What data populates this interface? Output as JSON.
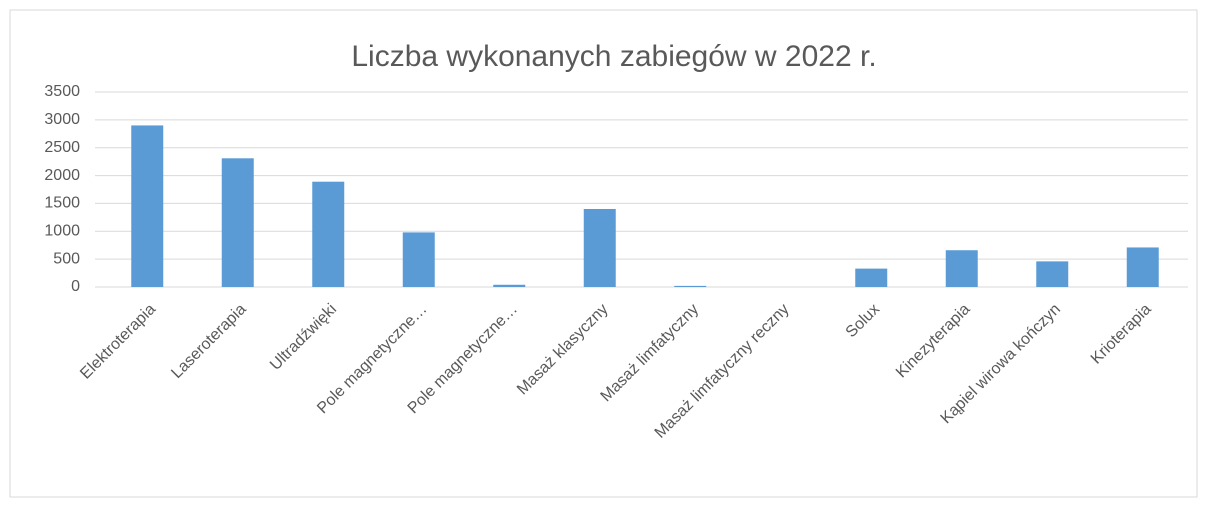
{
  "chart_data": {
    "type": "bar",
    "title": "Liczba wykonanych zabiegów w 2022 r.",
    "categories": [
      "Elektroterapia",
      "Laseroterapia",
      "Ultradźwięki",
      "Pole magnetyczne…",
      "Pole magnetyczne…",
      "Masaż klasyczny",
      "Masaż limfatyczny",
      "Masaż limfatyczny reczny",
      "Solux",
      "Kinezyterapia",
      "Kąpiel wirowa kończyn",
      "Krioterapia"
    ],
    "values": [
      2900,
      2310,
      1890,
      980,
      40,
      1400,
      20,
      0,
      330,
      660,
      460,
      710
    ],
    "color": "#5b9bd5",
    "ylim": [
      0,
      3500
    ],
    "yticks": [
      0,
      500,
      1000,
      1500,
      2000,
      2500,
      3000,
      3500
    ],
    "grid": true
  }
}
